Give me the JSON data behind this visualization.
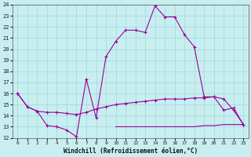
{
  "xlabel": "Windchill (Refroidissement éolien,°C)",
  "bg_color": "#c8eef0",
  "grid_color": "#9dd8dc",
  "line_color": "#990099",
  "hours": [
    0,
    1,
    2,
    3,
    4,
    5,
    6,
    7,
    8,
    9,
    10,
    11,
    12,
    13,
    14,
    15,
    16,
    17,
    18,
    19,
    20,
    21,
    22,
    23
  ],
  "temp": [
    16.0,
    14.8,
    14.4,
    13.1,
    13.0,
    12.7,
    12.1,
    17.3,
    13.8,
    19.3,
    20.7,
    21.7,
    21.7,
    21.5,
    23.9,
    22.9,
    22.9,
    21.3,
    20.2,
    15.7,
    15.7,
    14.5,
    14.7,
    13.2
  ],
  "windchill": [
    16.0,
    14.8,
    14.4,
    14.3,
    14.3,
    14.2,
    14.1,
    14.3,
    14.6,
    14.8,
    15.0,
    15.1,
    15.2,
    15.3,
    15.4,
    15.5,
    15.5,
    15.5,
    15.6,
    15.6,
    15.7,
    15.5,
    14.5,
    13.2
  ],
  "windchill2_x": [
    10,
    11,
    12,
    13,
    14,
    15,
    16,
    17,
    18,
    19,
    20,
    21,
    22,
    23
  ],
  "windchill2_y": [
    13.0,
    13.0,
    13.0,
    13.0,
    13.0,
    13.0,
    13.0,
    13.0,
    13.0,
    13.1,
    13.1,
    13.2,
    13.2,
    13.2
  ],
  "ylim": [
    12,
    24
  ],
  "xlim_min": -0.5,
  "xlim_max": 23.5,
  "yticks": [
    12,
    13,
    14,
    15,
    16,
    17,
    18,
    19,
    20,
    21,
    22,
    23,
    24
  ],
  "xticks": [
    0,
    1,
    2,
    3,
    4,
    5,
    6,
    7,
    8,
    9,
    10,
    11,
    12,
    13,
    14,
    15,
    16,
    17,
    18,
    19,
    20,
    21,
    22,
    23
  ]
}
